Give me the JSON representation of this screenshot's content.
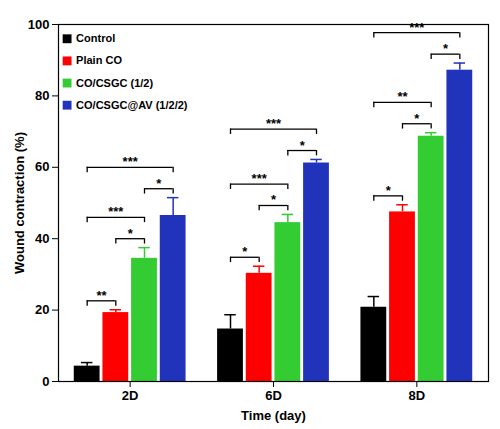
{
  "chart_data": {
    "type": "bar",
    "x_label": "Time (day)",
    "y_label": "Wound contraction (%)",
    "categories": [
      "2D",
      "6D",
      "8D"
    ],
    "series": [
      {
        "name": "Control",
        "color": "#000000",
        "values": [
          4.3,
          14.7,
          20.8
        ],
        "errors": [
          1.0,
          4.0,
          3.0
        ]
      },
      {
        "name": "Plain CO",
        "color": "#ff0000",
        "values": [
          19.3,
          30.3,
          47.5
        ],
        "errors": [
          0.8,
          2.0,
          2.0
        ]
      },
      {
        "name": "CO/CSGC (1/2)",
        "color": "#33cc33",
        "values": [
          34.5,
          44.5,
          68.7
        ],
        "errors": [
          3.0,
          2.3,
          1.0
        ]
      },
      {
        "name": "CO/CSGC@AV (1/2/2)",
        "color": "#2233bb",
        "values": [
          46.5,
          61.2,
          87.2
        ],
        "errors": [
          5.0,
          1.0,
          2.0
        ]
      }
    ],
    "significance": [
      {
        "category": "2D",
        "from": "Control",
        "to": "Plain CO",
        "label": "**"
      },
      {
        "category": "2D",
        "from": "Plain CO",
        "to": "CO/CSGC (1/2)",
        "label": "*"
      },
      {
        "category": "2D",
        "from": "Control",
        "to": "CO/CSGC (1/2)",
        "label": "***"
      },
      {
        "category": "2D",
        "from": "CO/CSGC (1/2)",
        "to": "CO/CSGC@AV (1/2/2)",
        "label": "*"
      },
      {
        "category": "2D",
        "from": "Control",
        "to": "CO/CSGC@AV (1/2/2)",
        "label": "***"
      },
      {
        "category": "6D",
        "from": "Control",
        "to": "Plain CO",
        "label": "*"
      },
      {
        "category": "6D",
        "from": "Plain CO",
        "to": "CO/CSGC (1/2)",
        "label": "*"
      },
      {
        "category": "6D",
        "from": "Control",
        "to": "CO/CSGC (1/2)",
        "label": "***"
      },
      {
        "category": "6D",
        "from": "CO/CSGC (1/2)",
        "to": "CO/CSGC@AV (1/2/2)",
        "label": "*"
      },
      {
        "category": "6D",
        "from": "Control",
        "to": "CO/CSGC@AV (1/2/2)",
        "label": "***"
      },
      {
        "category": "8D",
        "from": "Control",
        "to": "Plain CO",
        "label": "*"
      },
      {
        "category": "8D",
        "from": "Plain CO",
        "to": "CO/CSGC (1/2)",
        "label": "*"
      },
      {
        "category": "8D",
        "from": "Control",
        "to": "CO/CSGC (1/2)",
        "label": "**"
      },
      {
        "category": "8D",
        "from": "CO/CSGC (1/2)",
        "to": "CO/CSGC@AV (1/2/2)",
        "label": "*"
      },
      {
        "category": "8D",
        "from": "Control",
        "to": "CO/CSGC@AV (1/2/2)",
        "label": "***"
      }
    ],
    "ylim": [
      0,
      100
    ],
    "yticks": [
      0,
      20,
      40,
      60,
      80,
      100
    ],
    "legend": "top-left",
    "grid": false
  }
}
